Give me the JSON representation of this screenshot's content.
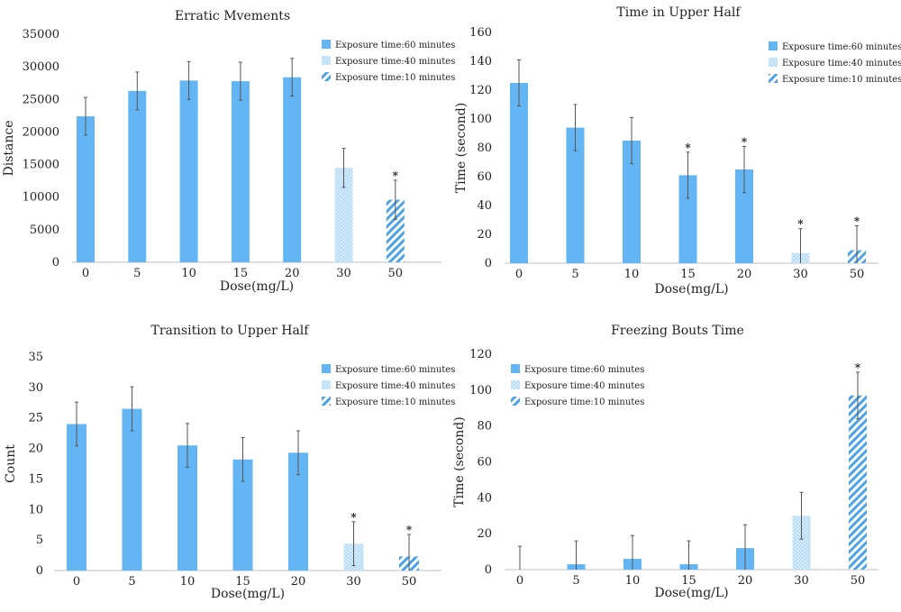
{
  "colors": {
    "bar": "#63b6f3",
    "hatch": "#4aa3e8",
    "dots": "#8ec9f2",
    "error": "#555555"
  },
  "legend": {
    "items": [
      {
        "label": "Exposure time:60 minutes",
        "pattern": "solid"
      },
      {
        "label": "Exposure time:40 minutes",
        "pattern": "dots"
      },
      {
        "label": "Exposure time:10 minutes",
        "pattern": "hatch"
      }
    ]
  },
  "chart_data": [
    {
      "type": "bar",
      "title": "Erratic Mvements",
      "xlabel": "Dose(mg/L)",
      "ylabel": "Distance",
      "categories": [
        "0",
        "5",
        "10",
        "15",
        "20",
        "30",
        "50"
      ],
      "values": [
        22400,
        26300,
        27900,
        27800,
        28400,
        14500,
        9600
      ],
      "errors": [
        2900,
        2900,
        2900,
        2900,
        2900,
        3000,
        3000
      ],
      "patterns": [
        "solid",
        "solid",
        "solid",
        "solid",
        "solid",
        "dots",
        "hatch"
      ],
      "significant": [
        false,
        false,
        false,
        false,
        false,
        false,
        true
      ],
      "yticks": [
        "0",
        "5000",
        "10000",
        "15000",
        "20000",
        "25000",
        "30000",
        "35000"
      ],
      "ylim": [
        0,
        35000
      ],
      "legend_position": "top-right"
    },
    {
      "type": "bar",
      "title": "Time in Upper Half",
      "xlabel": "Dose(mg/L)",
      "ylabel": "Time (second)",
      "categories": [
        "0",
        "5",
        "10",
        "15",
        "20",
        "30",
        "50"
      ],
      "values": [
        125,
        94,
        85,
        61,
        65,
        7,
        9
      ],
      "errors": [
        16,
        16,
        16,
        16,
        16,
        17,
        17
      ],
      "patterns": [
        "solid",
        "solid",
        "solid",
        "solid",
        "solid",
        "dots",
        "hatch"
      ],
      "significant": [
        false,
        false,
        false,
        true,
        true,
        true,
        true
      ],
      "yticks": [
        "0",
        "20",
        "40",
        "60",
        "80",
        "100",
        "120",
        "140",
        "160"
      ],
      "ylim": [
        0,
        160
      ],
      "legend_position": "top-right"
    },
    {
      "type": "bar",
      "title": "Transition to Upper Half",
      "xlabel": "Dose(mg/L)",
      "ylabel": "Count",
      "categories": [
        "0",
        "5",
        "10",
        "15",
        "20",
        "30",
        "50"
      ],
      "values": [
        24,
        26.5,
        20.5,
        18.2,
        19.3,
        4.4,
        2.3
      ],
      "errors": [
        3.6,
        3.6,
        3.6,
        3.6,
        3.6,
        3.6,
        3.6
      ],
      "patterns": [
        "solid",
        "solid",
        "solid",
        "solid",
        "solid",
        "dots",
        "hatch"
      ],
      "significant": [
        false,
        false,
        false,
        false,
        false,
        true,
        true
      ],
      "yticks": [
        "0",
        "5",
        "10",
        "15",
        "20",
        "25",
        "30",
        "35"
      ],
      "ylim": [
        0,
        35
      ],
      "legend_position": "top-right"
    },
    {
      "type": "bar",
      "title": "Freezing Bouts Time",
      "xlabel": "Dose(mg/L)",
      "ylabel": "Time (second)",
      "categories": [
        "0",
        "5",
        "10",
        "15",
        "20",
        "30",
        "50"
      ],
      "values": [
        0,
        3,
        6,
        3,
        12,
        30,
        97
      ],
      "errors": [
        13,
        13,
        13,
        13,
        13,
        13,
        13
      ],
      "patterns": [
        "solid",
        "solid",
        "solid",
        "solid",
        "solid",
        "dots",
        "hatch"
      ],
      "significant": [
        false,
        false,
        false,
        false,
        false,
        false,
        true
      ],
      "yticks": [
        "0",
        "20",
        "40",
        "60",
        "80",
        "100",
        "120"
      ],
      "ylim": [
        0,
        120
      ],
      "legend_position": "top-left"
    }
  ]
}
